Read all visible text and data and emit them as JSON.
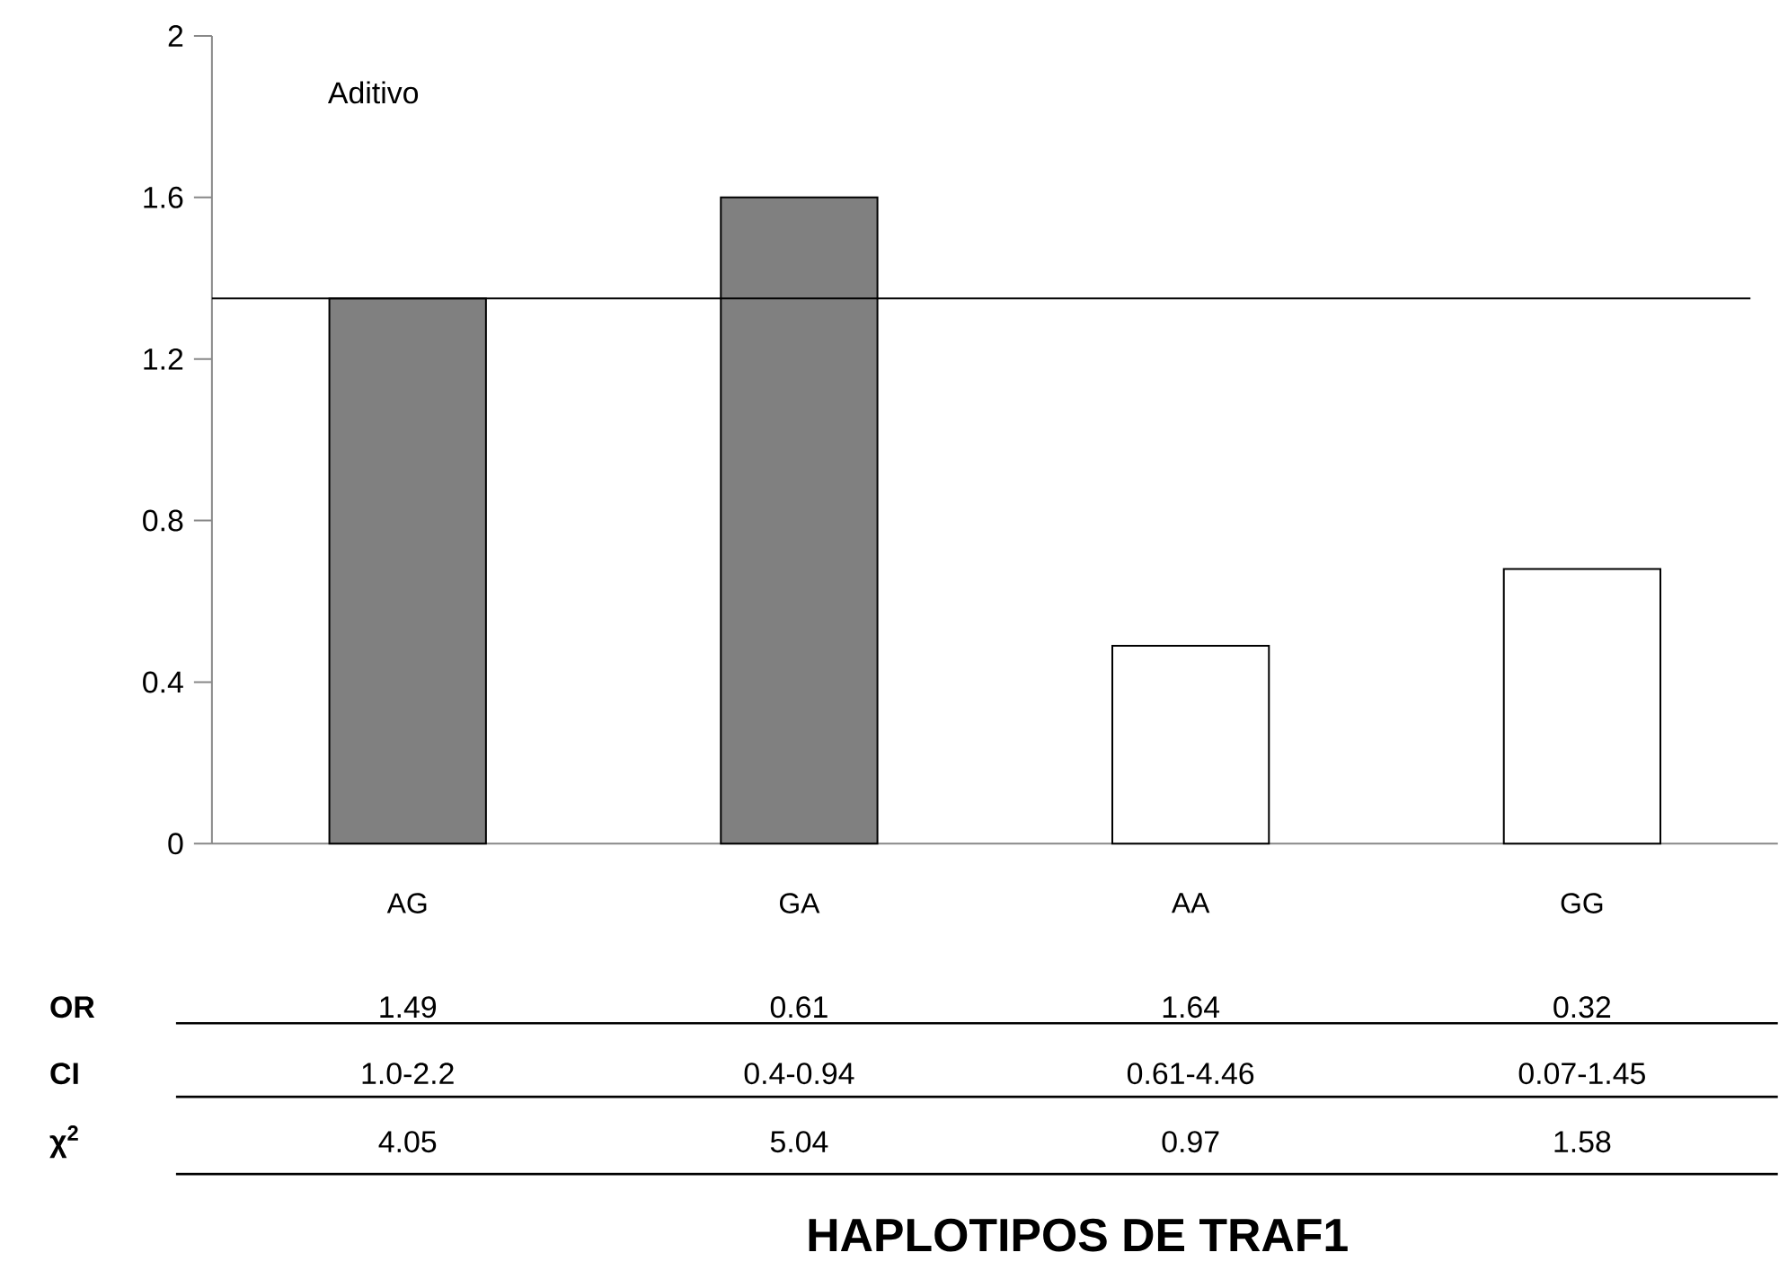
{
  "chart_data": {
    "type": "bar",
    "categories": [
      "AG",
      "GA",
      "AA",
      "GG"
    ],
    "values": [
      1.35,
      1.6,
      0.49,
      0.68
    ],
    "colors": [
      "#808080",
      "#808080",
      "#ffffff",
      "#ffffff"
    ],
    "ylim": [
      0,
      2
    ],
    "yticks": [
      0,
      0.4,
      0.8,
      1.2,
      1.6,
      2
    ],
    "ref_lines": [
      {
        "axis": "y",
        "value": 1.35,
        "color": "#000000"
      }
    ],
    "annotations": [
      "Aditivo",
      "OR",
      "1.49",
      "0.61",
      "1.64",
      "0.32",
      "CI",
      "1.0-2.2",
      "0.4-0.94",
      "0.61-4.46",
      "0.07-1.45",
      "χ$^{2}$",
      "4.05",
      "5.04",
      "0.97",
      "1.58",
      "HAPLOTIPOS DE TRAF1"
    ]
  }
}
